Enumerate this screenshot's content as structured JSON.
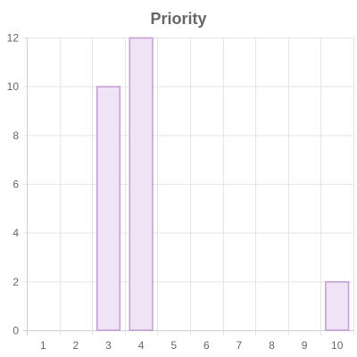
{
  "chart_data": {
    "type": "bar",
    "title": "Priority",
    "categories": [
      "1",
      "2",
      "3",
      "4",
      "5",
      "6",
      "7",
      "8",
      "9",
      "10"
    ],
    "values": [
      0,
      0,
      10,
      12,
      0,
      0,
      0,
      0,
      0,
      2
    ],
    "ylim": [
      0,
      12
    ],
    "yticks": [
      0,
      2,
      4,
      6,
      8,
      10,
      12
    ],
    "xlabel": "",
    "ylabel": "",
    "grid": true,
    "legend": "none",
    "bar_fill": "#efe4f5",
    "bar_stroke": "#c49bd6"
  }
}
